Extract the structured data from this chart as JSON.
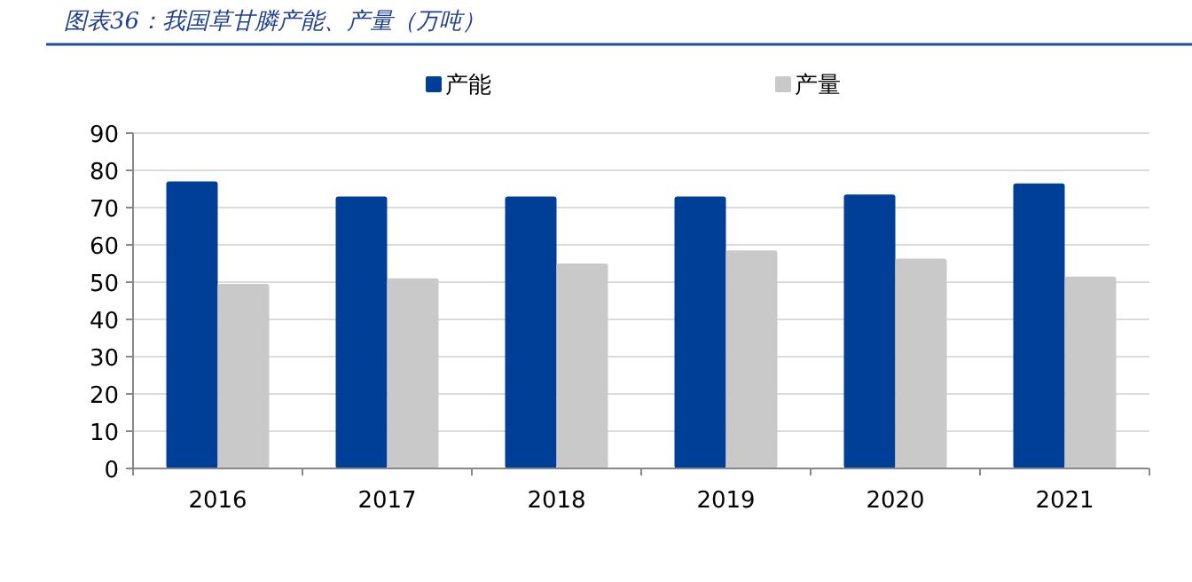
{
  "chart_data": {
    "type": "bar",
    "title": "图表36：我国草甘膦产能、产量（万吨）",
    "categories": [
      "2016",
      "2017",
      "2018",
      "2019",
      "2020",
      "2021"
    ],
    "series": [
      {
        "name": "产能",
        "color": "#003f98",
        "values": [
          77,
          73,
          73,
          73,
          73.5,
          76.5
        ]
      },
      {
        "name": "产量",
        "color": "#c9c9c9",
        "values": [
          49.5,
          51,
          55,
          58.5,
          56.3,
          51.5
        ]
      }
    ],
    "ylim": [
      0,
      90
    ],
    "yticks": [
      0,
      10,
      20,
      30,
      40,
      50,
      60,
      70,
      80,
      90
    ],
    "grid": "y",
    "legend": "top"
  }
}
